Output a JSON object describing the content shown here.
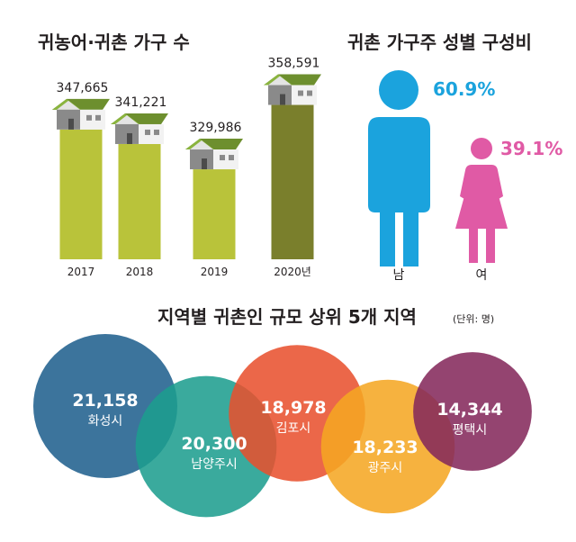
{
  "chart_data": [
    {
      "type": "bar",
      "title": "귀농어·귀촌 가구 수",
      "categories": [
        "2017",
        "2018",
        "2019",
        "2020년"
      ],
      "values": [
        347665,
        341221,
        329986,
        358591
      ],
      "value_labels": [
        "347,665",
        "341,221",
        "329,986",
        "358,591"
      ],
      "bar_colors": [
        "#b9c33a",
        "#b9c33a",
        "#b9c33a",
        "#7a7f2c"
      ],
      "ylim": [
        290000,
        360000
      ]
    },
    {
      "type": "pie",
      "title": "귀촌 가구주 성별 구성비",
      "categories": [
        "남",
        "여"
      ],
      "values": [
        60.9,
        39.1
      ],
      "value_labels": [
        "60.9%",
        "39.1%"
      ],
      "colors": [
        "#1ba3dd",
        "#e05aa5"
      ]
    },
    {
      "type": "bubble",
      "title": "지역별 귀촌인 규모 상위 5개 지역",
      "unit_note": "(단위: 명)",
      "categories": [
        "화성시",
        "남양주시",
        "김포시",
        "광주시",
        "평택시"
      ],
      "values": [
        21158,
        20300,
        18978,
        18233,
        14344
      ],
      "value_labels": [
        "21,158",
        "20,300",
        "18,978",
        "18,233",
        "14,344"
      ],
      "colors": [
        "#1f5f8d",
        "#1d9d8e",
        "#e8502e",
        "#f5a623",
        "#84285b"
      ]
    }
  ]
}
